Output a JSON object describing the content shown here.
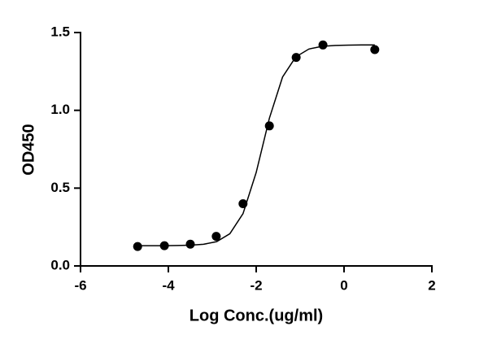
{
  "chart_data": {
    "type": "scatter",
    "x_label": "Log Conc.(ug/ml)",
    "y_label": "OD450",
    "x": [
      -4.7,
      -4.09,
      -3.5,
      -2.91,
      -2.3,
      -1.7,
      -1.09,
      -0.48,
      0.7
    ],
    "values": [
      0.125,
      0.13,
      0.14,
      0.19,
      0.4,
      0.9,
      1.34,
      1.42,
      1.39
    ],
    "color": "#000000",
    "curve": {
      "x": [
        -4.7,
        -4.4,
        -4.1,
        -3.8,
        -3.5,
        -3.2,
        -2.9,
        -2.6,
        -2.3,
        -2.0,
        -1.7,
        -1.4,
        -1.1,
        -0.8,
        -0.5,
        -0.2,
        0.1,
        0.4,
        0.7
      ],
      "values": [
        0.13,
        0.13,
        0.13,
        0.131,
        0.133,
        0.139,
        0.156,
        0.207,
        0.336,
        0.601,
        0.949,
        1.214,
        1.343,
        1.394,
        1.411,
        1.417,
        1.419,
        1.42,
        1.42
      ]
    },
    "xlim": [
      -6,
      2
    ],
    "xticks": [
      -6,
      -4,
      -2,
      0,
      2
    ],
    "ylim": [
      0,
      1.5
    ],
    "yticks": [
      {
        "value": 0,
        "label": "0.0"
      },
      {
        "value": 0.5,
        "label": "0.5"
      },
      {
        "value": 1,
        "label": "1.0"
      },
      {
        "value": 1.5,
        "label": "1.5"
      }
    ]
  }
}
